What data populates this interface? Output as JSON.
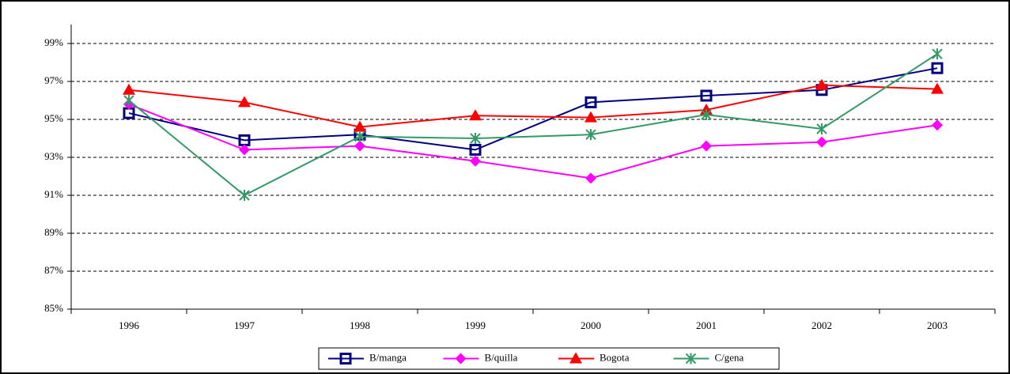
{
  "chart_data": {
    "type": "line",
    "categories": [
      "1996",
      "1997",
      "1998",
      "1999",
      "2000",
      "2001",
      "2002",
      "2003"
    ],
    "series": [
      {
        "name": "B/manga",
        "color": "#000080",
        "marker": "square",
        "values": [
          95.33,
          93.9,
          94.2,
          93.4,
          95.9,
          96.25,
          96.55,
          97.7
        ]
      },
      {
        "name": "B/quilla",
        "color": "#ff00ff",
        "marker": "diamond",
        "values": [
          95.8,
          93.4,
          93.6,
          92.8,
          91.9,
          93.6,
          93.8,
          94.7
        ]
      },
      {
        "name": "Bogota",
        "color": "#ff0000",
        "marker": "triangle",
        "values": [
          96.55,
          95.9,
          94.6,
          95.2,
          95.1,
          95.5,
          96.8,
          96.6
        ]
      },
      {
        "name": "C/gena",
        "color": "#339966",
        "marker": "asterisk",
        "values": [
          96.0,
          91.0,
          94.1,
          94.0,
          94.2,
          95.25,
          94.5,
          98.45
        ]
      }
    ],
    "ylim": [
      85,
      100
    ],
    "yticks": [
      {
        "value": 85,
        "label": "85%"
      },
      {
        "value": 87,
        "label": "87%"
      },
      {
        "value": 89,
        "label": "89%"
      },
      {
        "value": 91,
        "label": "91%"
      },
      {
        "value": 93,
        "label": "93%"
      },
      {
        "value": 95,
        "label": "95%"
      },
      {
        "value": 97,
        "label": "97%"
      },
      {
        "value": 99,
        "label": "99%"
      }
    ],
    "grid": true,
    "legend": "bottom"
  }
}
